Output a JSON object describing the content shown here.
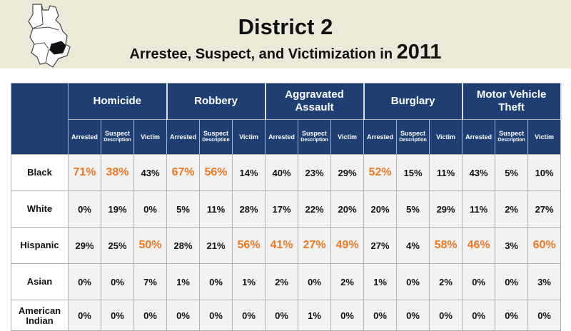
{
  "header": {
    "title": "District 2",
    "subtitle": "Arrestee, Suspect, and Victimization in",
    "year": "2011"
  },
  "colors": {
    "header_bg": "#1f3f73",
    "highlight": "#f07820",
    "banner_bg": "#ece9d8"
  },
  "table": {
    "crimes": [
      "Homicide",
      "Robbery",
      "Aggravated Assault",
      "Burglary",
      "Motor Vehicle Theft"
    ],
    "subheaders": {
      "arrested": "Arrested",
      "suspect_line1": "Suspect",
      "suspect_line2": "Description",
      "victim": "Victim"
    },
    "rows": [
      {
        "label": "Black",
        "cells": [
          {
            "v": "71%",
            "h": true
          },
          {
            "v": "38%",
            "h": true
          },
          {
            "v": "43%",
            "h": false
          },
          {
            "v": "67%",
            "h": true
          },
          {
            "v": "56%",
            "h": true
          },
          {
            "v": "14%",
            "h": false
          },
          {
            "v": "40%",
            "h": false
          },
          {
            "v": "23%",
            "h": false
          },
          {
            "v": "29%",
            "h": false
          },
          {
            "v": "52%",
            "h": true
          },
          {
            "v": "15%",
            "h": false
          },
          {
            "v": "11%",
            "h": false
          },
          {
            "v": "43%",
            "h": false
          },
          {
            "v": "5%",
            "h": false
          },
          {
            "v": "10%",
            "h": false
          }
        ]
      },
      {
        "label": "White",
        "cells": [
          {
            "v": "0%",
            "h": false
          },
          {
            "v": "19%",
            "h": false
          },
          {
            "v": "0%",
            "h": false
          },
          {
            "v": "5%",
            "h": false
          },
          {
            "v": "11%",
            "h": false
          },
          {
            "v": "28%",
            "h": false
          },
          {
            "v": "17%",
            "h": false
          },
          {
            "v": "22%",
            "h": false
          },
          {
            "v": "20%",
            "h": false
          },
          {
            "v": "20%",
            "h": false
          },
          {
            "v": "5%",
            "h": false
          },
          {
            "v": "29%",
            "h": false
          },
          {
            "v": "11%",
            "h": false
          },
          {
            "v": "2%",
            "h": false
          },
          {
            "v": "27%",
            "h": false
          }
        ]
      },
      {
        "label": "Hispanic",
        "cells": [
          {
            "v": "29%",
            "h": false
          },
          {
            "v": "25%",
            "h": false
          },
          {
            "v": "50%",
            "h": true
          },
          {
            "v": "28%",
            "h": false
          },
          {
            "v": "21%",
            "h": false
          },
          {
            "v": "56%",
            "h": true
          },
          {
            "v": "41%",
            "h": true
          },
          {
            "v": "27%",
            "h": true
          },
          {
            "v": "49%",
            "h": true
          },
          {
            "v": "27%",
            "h": false
          },
          {
            "v": "4%",
            "h": false
          },
          {
            "v": "58%",
            "h": true
          },
          {
            "v": "46%",
            "h": true
          },
          {
            "v": "3%",
            "h": false
          },
          {
            "v": "60%",
            "h": true
          }
        ]
      },
      {
        "label": "Asian",
        "cells": [
          {
            "v": "0%",
            "h": false
          },
          {
            "v": "0%",
            "h": false
          },
          {
            "v": "7%",
            "h": false
          },
          {
            "v": "1%",
            "h": false
          },
          {
            "v": "0%",
            "h": false
          },
          {
            "v": "1%",
            "h": false
          },
          {
            "v": "2%",
            "h": false
          },
          {
            "v": "0%",
            "h": false
          },
          {
            "v": "2%",
            "h": false
          },
          {
            "v": "1%",
            "h": false
          },
          {
            "v": "0%",
            "h": false
          },
          {
            "v": "2%",
            "h": false
          },
          {
            "v": "0%",
            "h": false
          },
          {
            "v": "0%",
            "h": false
          },
          {
            "v": "3%",
            "h": false
          }
        ]
      },
      {
        "label": "American Indian",
        "cells": [
          {
            "v": "0%",
            "h": false
          },
          {
            "v": "0%",
            "h": false
          },
          {
            "v": "0%",
            "h": false
          },
          {
            "v": "0%",
            "h": false
          },
          {
            "v": "0%",
            "h": false
          },
          {
            "v": "0%",
            "h": false
          },
          {
            "v": "0%",
            "h": false
          },
          {
            "v": "1%",
            "h": false
          },
          {
            "v": "0%",
            "h": false
          },
          {
            "v": "0%",
            "h": false
          },
          {
            "v": "0%",
            "h": false
          },
          {
            "v": "0%",
            "h": false
          },
          {
            "v": "0%",
            "h": false
          },
          {
            "v": "0%",
            "h": false
          },
          {
            "v": "0%",
            "h": false
          }
        ]
      }
    ]
  }
}
